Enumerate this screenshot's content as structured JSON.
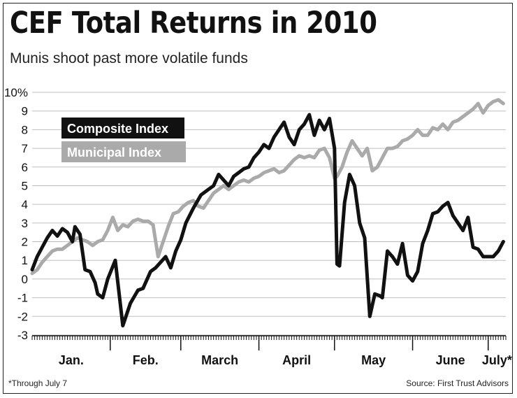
{
  "title": "CEF Total Returns in 2010",
  "subtitle": "Munis shoot past more volatile funds",
  "footnote": "*Through July 7",
  "source": "Source: First Trust Advisors",
  "colors": {
    "composite": "#111111",
    "municipal": "#aaaaaa",
    "grid": "#bfbfbf"
  },
  "chart_data": {
    "type": "line",
    "ylim": [
      -3,
      10
    ],
    "y_tick_labels": [
      "10%",
      "9",
      "8",
      "7",
      "6",
      "5",
      "4",
      "3",
      "2",
      "1",
      "0",
      "-1",
      "-2",
      "-3"
    ],
    "y_tick_values": [
      10,
      9,
      8,
      7,
      6,
      5,
      4,
      3,
      2,
      1,
      0,
      -1,
      -2,
      -3
    ],
    "x_range": [
      0,
      188
    ],
    "months": [
      "Jan.",
      "Feb.",
      "March",
      "April",
      "May",
      "June",
      "July*"
    ],
    "month_label_day": [
      0,
      31,
      59,
      90,
      120,
      151,
      181
    ],
    "month_boundary_day": [
      31,
      59,
      90,
      120,
      151,
      181
    ],
    "grid": true,
    "legend_position": "top-left",
    "series": [
      {
        "name": "Composite Index",
        "color": "#111111",
        "x": [
          0,
          2,
          4,
          6,
          8,
          10,
          12,
          14,
          16,
          17,
          19,
          21,
          23,
          25,
          26,
          28,
          30,
          33,
          36,
          39,
          42,
          44,
          47,
          49,
          51,
          53,
          55,
          57,
          59,
          61,
          64,
          67,
          70,
          72,
          74,
          76,
          78,
          80,
          82,
          84,
          86,
          88,
          90,
          92,
          94,
          96,
          98,
          100,
          102,
          104,
          106,
          108,
          110,
          112,
          114,
          116,
          118,
          120,
          121,
          122,
          124,
          126,
          128,
          130,
          132,
          134,
          136,
          138,
          139,
          141,
          143,
          145,
          147,
          149,
          151,
          153,
          155,
          157,
          159,
          161,
          163,
          165,
          167,
          169,
          171,
          173,
          175,
          177,
          179,
          181,
          183,
          185,
          187
        ],
        "y": [
          0.5,
          1.2,
          1.7,
          2.2,
          2.6,
          2.3,
          2.7,
          2.5,
          2.0,
          2.8,
          2.4,
          0.5,
          0.4,
          -0.2,
          -0.8,
          -1.0,
          0.0,
          1.0,
          -2.5,
          -1.3,
          -0.6,
          -0.5,
          0.4,
          0.6,
          0.9,
          1.2,
          0.6,
          1.5,
          2.1,
          3.0,
          3.8,
          4.5,
          4.8,
          5.0,
          5.6,
          5.3,
          5.0,
          5.5,
          5.7,
          5.9,
          6.0,
          6.5,
          6.8,
          7.2,
          7.0,
          7.6,
          8.0,
          8.4,
          7.6,
          7.2,
          8.0,
          8.3,
          8.8,
          7.7,
          8.5,
          8.0,
          8.6,
          7.0,
          0.8,
          0.7,
          4.1,
          5.6,
          5.0,
          3.0,
          2.2,
          -2.0,
          -0.8,
          -0.9,
          -1.0,
          1.5,
          1.2,
          0.8,
          1.9,
          0.2,
          -0.1,
          0.4,
          1.9,
          2.6,
          3.5,
          3.6,
          3.9,
          4.1,
          3.4,
          3.0,
          2.6,
          3.3,
          1.7,
          1.6,
          1.2,
          1.2,
          1.2,
          1.5,
          2.0
        ]
      },
      {
        "name": "Municipal Index",
        "color": "#aaaaaa",
        "x": [
          0,
          2,
          4,
          6,
          8,
          10,
          12,
          14,
          16,
          18,
          20,
          22,
          24,
          26,
          28,
          30,
          32,
          34,
          36,
          38,
          40,
          42,
          44,
          46,
          48,
          50,
          52,
          54,
          56,
          58,
          60,
          62,
          64,
          66,
          68,
          70,
          72,
          74,
          76,
          78,
          80,
          82,
          84,
          86,
          88,
          90,
          92,
          94,
          96,
          98,
          100,
          102,
          104,
          106,
          108,
          110,
          112,
          114,
          116,
          118,
          120,
          121,
          123,
          125,
          127,
          129,
          131,
          133,
          135,
          137,
          139,
          141,
          143,
          145,
          147,
          149,
          151,
          153,
          155,
          157,
          159,
          161,
          163,
          165,
          167,
          169,
          171,
          173,
          175,
          177,
          179,
          181,
          183,
          185,
          187
        ],
        "y": [
          0.3,
          0.5,
          0.9,
          1.2,
          1.5,
          1.6,
          1.6,
          1.8,
          2.0,
          2.2,
          2.1,
          2.0,
          1.8,
          2.0,
          2.1,
          2.6,
          3.3,
          2.6,
          2.9,
          2.8,
          3.1,
          3.2,
          3.1,
          3.1,
          2.9,
          1.2,
          2.0,
          2.8,
          3.5,
          3.6,
          3.9,
          4.1,
          4.2,
          3.9,
          3.8,
          4.2,
          4.6,
          4.8,
          5.0,
          4.8,
          5.0,
          5.2,
          5.3,
          5.2,
          5.4,
          5.5,
          5.7,
          5.8,
          5.9,
          5.7,
          5.8,
          6.1,
          6.4,
          6.6,
          6.5,
          6.6,
          6.5,
          6.9,
          7.0,
          6.5,
          5.4,
          5.5,
          6.0,
          6.8,
          7.4,
          7.0,
          6.6,
          7.0,
          5.8,
          6.0,
          6.5,
          7.0,
          7.0,
          7.1,
          7.4,
          7.5,
          7.7,
          8.0,
          7.7,
          7.7,
          8.1,
          8.0,
          8.3,
          8.0,
          8.4,
          8.5,
          8.7,
          8.9,
          9.1,
          9.4,
          8.9,
          9.3,
          9.5,
          9.6,
          9.4
        ]
      }
    ]
  }
}
